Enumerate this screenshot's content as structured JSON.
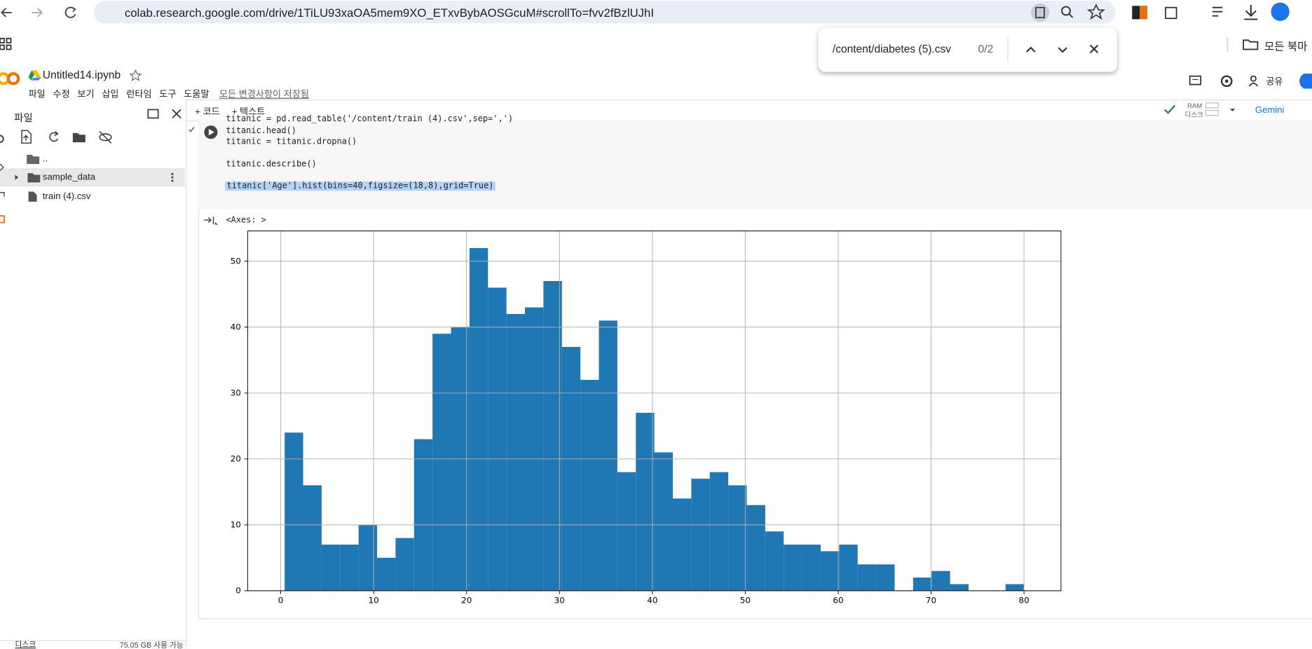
{
  "browser": {
    "url": "colab.research.google.com/drive/1TiLU93xaOA5mem9XO_ETxvBybAOSGcuM#scrollTo=fvv2fBzlUJhI",
    "find": {
      "query": "/content/diabetes (5).csv",
      "count": "0/2"
    },
    "bookmarks": "모든 북마"
  },
  "header": {
    "title": "Untitled14.ipynb",
    "menu": [
      "파일",
      "수정",
      "보기",
      "삽입",
      "런타임",
      "도구",
      "도움말"
    ],
    "saved": "모든 변경사항이 저장됨",
    "share": "공유"
  },
  "toolbar": {
    "add_code": "+ 코드",
    "add_text": "+ 텍스트",
    "ram": "RAM",
    "disk": "디스크",
    "gemini": "Gemini"
  },
  "sidebar": {
    "title": "파일",
    "items": [
      "..",
      "sample_data",
      "train (4).csv"
    ],
    "disk_label": "디스크",
    "disk_free": "75.05 GB 사용 가능"
  },
  "cell": {
    "code": [
      "titanic = pd.read_table('/content/train (4).csv',sep=',')",
      "titanic.head()",
      "titanic = titanic.dropna()",
      "titanic.describe()",
      "titanic['Age'].hist(bins=40,figsize=(18,8),grid=True)"
    ],
    "output": "<Axes: >"
  },
  "chart_data": {
    "type": "histogram",
    "bins": [
      0.42,
      2.4095,
      4.399,
      6.3885,
      8.378,
      10.3675,
      12.357,
      14.3465,
      16.336,
      18.3255,
      20.315,
      22.3045,
      24.294,
      26.2835,
      28.273,
      30.2625,
      32.252,
      34.2415,
      36.231,
      38.2205,
      40.21,
      42.1995,
      44.189,
      46.1785,
      48.168,
      50.1575,
      52.147,
      54.1365,
      56.126,
      58.1155,
      60.105,
      62.0945,
      64.084,
      66.0735,
      68.063,
      70.0525,
      72.042,
      74.0315,
      76.021,
      78.0105,
      80.0
    ],
    "values": [
      24,
      16,
      7,
      7,
      10,
      5,
      8,
      23,
      39,
      40,
      52,
      46,
      42,
      43,
      47,
      37,
      32,
      41,
      18,
      27,
      21,
      14,
      17,
      18,
      16,
      13,
      9,
      7,
      7,
      6,
      7,
      4,
      4,
      0,
      2,
      3,
      1,
      0,
      0,
      1
    ],
    "color": "#1f77b4",
    "xlim": [
      -3.56,
      83.98
    ],
    "xticks": [
      0,
      10,
      20,
      30,
      40,
      50,
      60,
      70,
      80
    ],
    "ylim": [
      0,
      54.6
    ],
    "yticks": [
      0,
      10,
      20,
      30,
      40,
      50
    ],
    "grid": true
  }
}
